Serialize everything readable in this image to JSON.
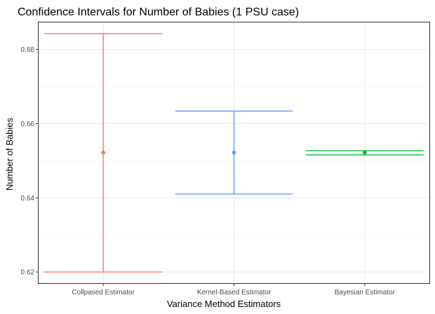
{
  "chart_data": {
    "type": "errorbar",
    "title": "Confidence Intervals for Number of Babies (1 PSU case)",
    "xlabel": "Variance Method Estimators",
    "ylabel": "Number of Babies",
    "categories": [
      "Collpased Estimator",
      "Kernel-Based Estimator",
      "Bayesian Estimator"
    ],
    "estimates": [
      0.6522,
      0.6522,
      0.6522
    ],
    "lower": [
      0.62,
      0.641,
      0.6516
    ],
    "upper": [
      0.6843,
      0.6634,
      0.6527
    ],
    "colors": [
      "#F8766D",
      "#619CFF",
      "#00BA38"
    ],
    "y_ticks": [
      0.62,
      0.64,
      0.66,
      0.68
    ],
    "y_tick_labels": [
      "0.62",
      "0.64",
      "0.66",
      "0.68"
    ],
    "ylim": [
      0.6168,
      0.6875
    ],
    "grid": true
  }
}
